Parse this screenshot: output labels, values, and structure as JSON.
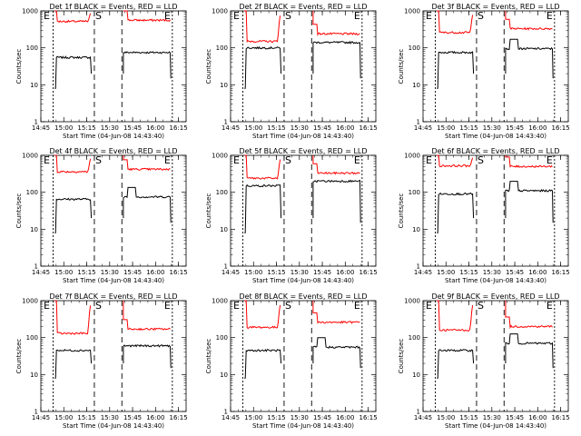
{
  "chart_data": [
    {
      "type": "line",
      "title": "Det 1f BLACK = Events, RED = LLD",
      "xlabel": "Start Time (04-Jun-08 14:43:40)",
      "ylabel": "Counts/sec",
      "xlim": [
        "14:45",
        "16:20"
      ],
      "ylim": [
        1,
        1000
      ],
      "yscale": "log",
      "markers": [
        "E",
        "S",
        "E"
      ],
      "series": [
        {
          "name": "Events",
          "color": "#000000",
          "levels": [
            55,
            75
          ],
          "spike": 0
        },
        {
          "name": "LLD",
          "color": "#ff0000",
          "levels": [
            520,
            560
          ],
          "spike": 0
        }
      ]
    },
    {
      "type": "line",
      "title": "Det 2f BLACK = Events, RED = LLD",
      "xlabel": "Start Time (04-Jun-08 14:43:40)",
      "ylabel": "Counts/sec",
      "xlim": [
        "14:45",
        "16:20"
      ],
      "ylim": [
        1,
        1000
      ],
      "yscale": "log",
      "markers": [
        "E",
        "S",
        "E"
      ],
      "series": [
        {
          "name": "Events",
          "color": "#000000",
          "levels": [
            100,
            140
          ],
          "spike": 0
        },
        {
          "name": "LLD",
          "color": "#ff0000",
          "levels": [
            150,
            240
          ],
          "spike": 0
        }
      ]
    },
    {
      "type": "line",
      "title": "Det 3f BLACK = Events, RED = LLD",
      "xlabel": "Start Time (04-Jun-08 14:43:40)",
      "ylabel": "Counts/sec",
      "xlim": [
        "14:45",
        "16:20"
      ],
      "ylim": [
        1,
        1000
      ],
      "yscale": "log",
      "markers": [
        "E",
        "S",
        "E"
      ],
      "series": [
        {
          "name": "Events",
          "color": "#000000",
          "levels": [
            75,
            95
          ],
          "spike": 1
        },
        {
          "name": "LLD",
          "color": "#ff0000",
          "levels": [
            260,
            330
          ],
          "spike": 0
        }
      ]
    },
    {
      "type": "line",
      "title": "Det 4f BLACK = Events, RED = LLD",
      "xlabel": "Start Time (04-Jun-08 14:43:40)",
      "ylabel": "Counts/sec",
      "xlim": [
        "14:45",
        "16:20"
      ],
      "ylim": [
        1,
        1000
      ],
      "yscale": "log",
      "markers": [
        "E",
        "S",
        "E"
      ],
      "series": [
        {
          "name": "Events",
          "color": "#000000",
          "levels": [
            65,
            75
          ],
          "spike": 1
        },
        {
          "name": "LLD",
          "color": "#ff0000",
          "levels": [
            360,
            420
          ],
          "spike": 0
        }
      ]
    },
    {
      "type": "line",
      "title": "Det 5f BLACK = Events, RED = LLD",
      "xlabel": "Start Time (04-Jun-08 14:43:40)",
      "ylabel": "Counts/sec",
      "xlim": [
        "14:45",
        "16:20"
      ],
      "ylim": [
        1,
        1000
      ],
      "yscale": "log",
      "markers": [
        "E",
        "S",
        "E"
      ],
      "series": [
        {
          "name": "Events",
          "color": "#000000",
          "levels": [
            150,
            200
          ],
          "spike": 0
        },
        {
          "name": "LLD",
          "color": "#ff0000",
          "levels": [
            240,
            330
          ],
          "spike": 0
        }
      ]
    },
    {
      "type": "line",
      "title": "Det 6f BLACK = Events, RED = LLD",
      "xlabel": "Start Time (04-Jun-08 14:43:40)",
      "ylabel": "Counts/sec",
      "xlim": [
        "14:45",
        "16:20"
      ],
      "ylim": [
        1,
        1000
      ],
      "yscale": "log",
      "markers": [
        "E",
        "S",
        "E"
      ],
      "series": [
        {
          "name": "Events",
          "color": "#000000",
          "levels": [
            90,
            110
          ],
          "spike": 1
        },
        {
          "name": "LLD",
          "color": "#ff0000",
          "levels": [
            520,
            500
          ],
          "spike": 0
        }
      ]
    },
    {
      "type": "line",
      "title": "Det 7f BLACK = Events, RED = LLD",
      "xlabel": "Start Time (04-Jun-08 14:43:40)",
      "ylabel": "Counts/sec",
      "xlim": [
        "14:45",
        "16:20"
      ],
      "ylim": [
        1,
        1000
      ],
      "yscale": "log",
      "markers": [
        "E",
        "S",
        "E"
      ],
      "series": [
        {
          "name": "Events",
          "color": "#000000",
          "levels": [
            45,
            60
          ],
          "spike": 0
        },
        {
          "name": "LLD",
          "color": "#ff0000",
          "levels": [
            130,
            170
          ],
          "spike": 0
        }
      ]
    },
    {
      "type": "line",
      "title": "Det 8f BLACK = Events, RED = LLD",
      "xlabel": "Start Time (04-Jun-08 14:43:40)",
      "ylabel": "Counts/sec",
      "xlim": [
        "14:45",
        "16:20"
      ],
      "ylim": [
        1,
        1000
      ],
      "yscale": "log",
      "markers": [
        "E",
        "S",
        "E"
      ],
      "series": [
        {
          "name": "Events",
          "color": "#000000",
          "levels": [
            45,
            55
          ],
          "spike": 1
        },
        {
          "name": "LLD",
          "color": "#ff0000",
          "levels": [
            190,
            260
          ],
          "spike": 0
        }
      ]
    },
    {
      "type": "line",
      "title": "Det 9f BLACK = Events, RED = LLD",
      "xlabel": "Start Time (04-Jun-08 14:43:40)",
      "ylabel": "Counts/sec",
      "xlim": [
        "14:45",
        "16:20"
      ],
      "ylim": [
        1,
        1000
      ],
      "yscale": "log",
      "markers": [
        "E",
        "S",
        "E"
      ],
      "series": [
        {
          "name": "Events",
          "color": "#000000",
          "levels": [
            45,
            70
          ],
          "spike": 1
        },
        {
          "name": "LLD",
          "color": "#ff0000",
          "levels": [
            160,
            200
          ],
          "spike": 0
        }
      ]
    }
  ],
  "axes": {
    "xticks": [
      "14:45",
      "15:00",
      "15:15",
      "15:30",
      "15:45",
      "16:00",
      "16:15"
    ],
    "yticks": [
      "1",
      "10",
      "100",
      "1000"
    ]
  }
}
